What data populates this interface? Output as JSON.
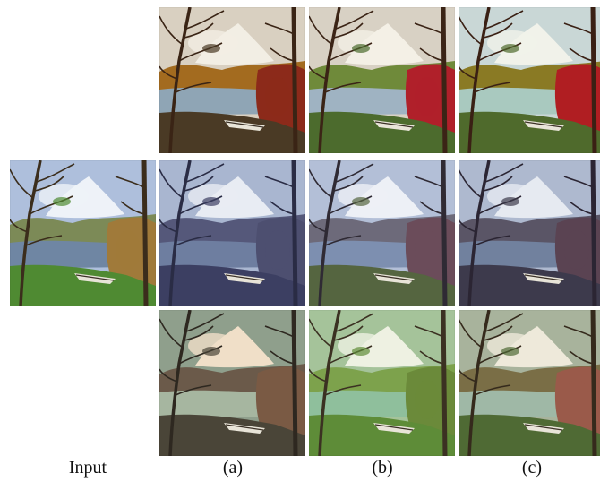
{
  "figure": {
    "labels": {
      "input": "Input",
      "a": "(a)",
      "b": "(b)",
      "c": "(c)"
    },
    "panels": [
      {
        "id": "input",
        "row": 2,
        "col": 0,
        "palette": {
          "sky": "#aebfdc",
          "cloud": "#eef2f8",
          "mount": "#7c8a57",
          "lake": "#6f86a3",
          "grass": "#4f8a32",
          "trees": "#3b2d1c",
          "accent": "#a07a3a"
        }
      },
      {
        "id": "a1",
        "row": 1,
        "col": 1,
        "palette": {
          "sky": "#d9d0c1",
          "cloud": "#f2eee4",
          "mount": "#a36b1f",
          "lake": "#8fa5b5",
          "grass": "#4a3a25",
          "trees": "#3a2415",
          "accent": "#8c2a1a"
        }
      },
      {
        "id": "b1",
        "row": 1,
        "col": 2,
        "palette": {
          "sky": "#d8d1c4",
          "cloud": "#f4f0e6",
          "mount": "#6f8a3a",
          "lake": "#9fb3c2",
          "grass": "#4c6b2d",
          "trees": "#3b2416",
          "accent": "#b0202a"
        }
      },
      {
        "id": "c1",
        "row": 1,
        "col": 3,
        "palette": {
          "sky": "#c9d7d6",
          "cloud": "#f1f2ea",
          "mount": "#8a7a24",
          "lake": "#a9c9bf",
          "grass": "#4f6a2c",
          "trees": "#3a2014",
          "accent": "#b01e22"
        }
      },
      {
        "id": "a2",
        "row": 2,
        "col": 1,
        "palette": {
          "sky": "#a9b6d0",
          "cloud": "#e8ecf3",
          "mount": "#55587a",
          "lake": "#6e7ea0",
          "grass": "#3c3f62",
          "trees": "#2a2c45",
          "accent": "#4d4f70"
        }
      },
      {
        "id": "b2",
        "row": 2,
        "col": 2,
        "palette": {
          "sky": "#b3bfd7",
          "cloud": "#edf0f6",
          "mount": "#6d6a7a",
          "lake": "#7d8fb0",
          "grass": "#556540",
          "trees": "#2f2a34",
          "accent": "#6b4c5a"
        }
      },
      {
        "id": "c2",
        "row": 2,
        "col": 3,
        "palette": {
          "sky": "#aeb9cf",
          "cloud": "#e6eaf1",
          "mount": "#5a5566",
          "lake": "#71819e",
          "grass": "#3d3a4c",
          "trees": "#2b2533",
          "accent": "#5a4352"
        }
      },
      {
        "id": "a3",
        "row": 3,
        "col": 1,
        "palette": {
          "sky": "#8f9f8c",
          "cloud": "#f0dfc8",
          "mount": "#6b5a4a",
          "lake": "#a6b6a0",
          "grass": "#4a4538",
          "trees": "#2e2820",
          "accent": "#7a5a44"
        }
      },
      {
        "id": "b3",
        "row": 3,
        "col": 2,
        "palette": {
          "sky": "#a5c39a",
          "cloud": "#eef1e2",
          "mount": "#7da24c",
          "lake": "#8fbf9c",
          "grass": "#5e8c38",
          "trees": "#3b3122",
          "accent": "#6b8a3a"
        }
      },
      {
        "id": "c3",
        "row": 3,
        "col": 3,
        "palette": {
          "sky": "#a8b39c",
          "cloud": "#eee9da",
          "mount": "#7a6e46",
          "lake": "#9fb8a6",
          "grass": "#4f6a34",
          "trees": "#352a1c",
          "accent": "#9a5a4a"
        }
      }
    ]
  }
}
